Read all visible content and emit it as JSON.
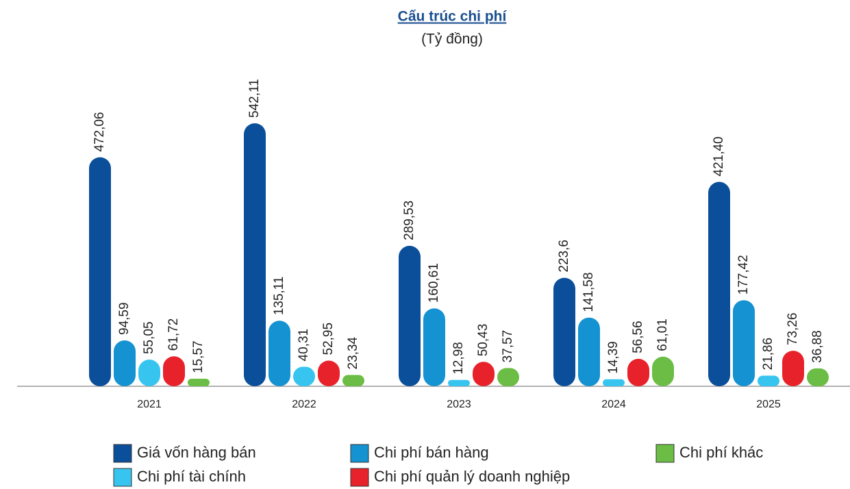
{
  "chart_data": {
    "type": "bar",
    "title": "Cấu trúc chi phí",
    "subtitle": "(Tỷ đồng)",
    "categories": [
      "2021",
      "2022",
      "2023",
      "2024",
      "2025"
    ],
    "series": [
      {
        "name": "Giá vốn hàng bán",
        "color": "#0b4f9a",
        "values": [
          472.06,
          542.11,
          289.53,
          223.6,
          421.4
        ],
        "value_labels": [
          "472,06",
          "542,11",
          "289,53",
          "223,6",
          "421,40"
        ]
      },
      {
        "name": "Chi phí bán hàng",
        "color": "#1592d1",
        "values": [
          94.59,
          135.11,
          160.61,
          141.58,
          177.42
        ],
        "value_labels": [
          "94,59",
          "135,11",
          "160,61",
          "141,58",
          "177,42"
        ]
      },
      {
        "name": "Chi phí tài chính",
        "color": "#37c5f0",
        "values": [
          55.05,
          40.31,
          12.98,
          14.39,
          21.86
        ],
        "value_labels": [
          "55,05",
          "40,31",
          "12,98",
          "14,39",
          "21,86"
        ]
      },
      {
        "name": "Chi phí quản lý doanh nghiệp",
        "color": "#e8222b",
        "values": [
          61.72,
          52.95,
          50.43,
          56.56,
          73.26
        ],
        "value_labels": [
          "61,72",
          "52,95",
          "50,43",
          "56,56",
          "73,26"
        ]
      },
      {
        "name": "Chi phí khác",
        "color": "#6bbd45",
        "values": [
          15.57,
          23.34,
          37.57,
          61.01,
          36.88
        ],
        "value_labels": [
          "15,57",
          "23,34",
          "37,57",
          "61,01",
          "36,88"
        ]
      }
    ]
  }
}
